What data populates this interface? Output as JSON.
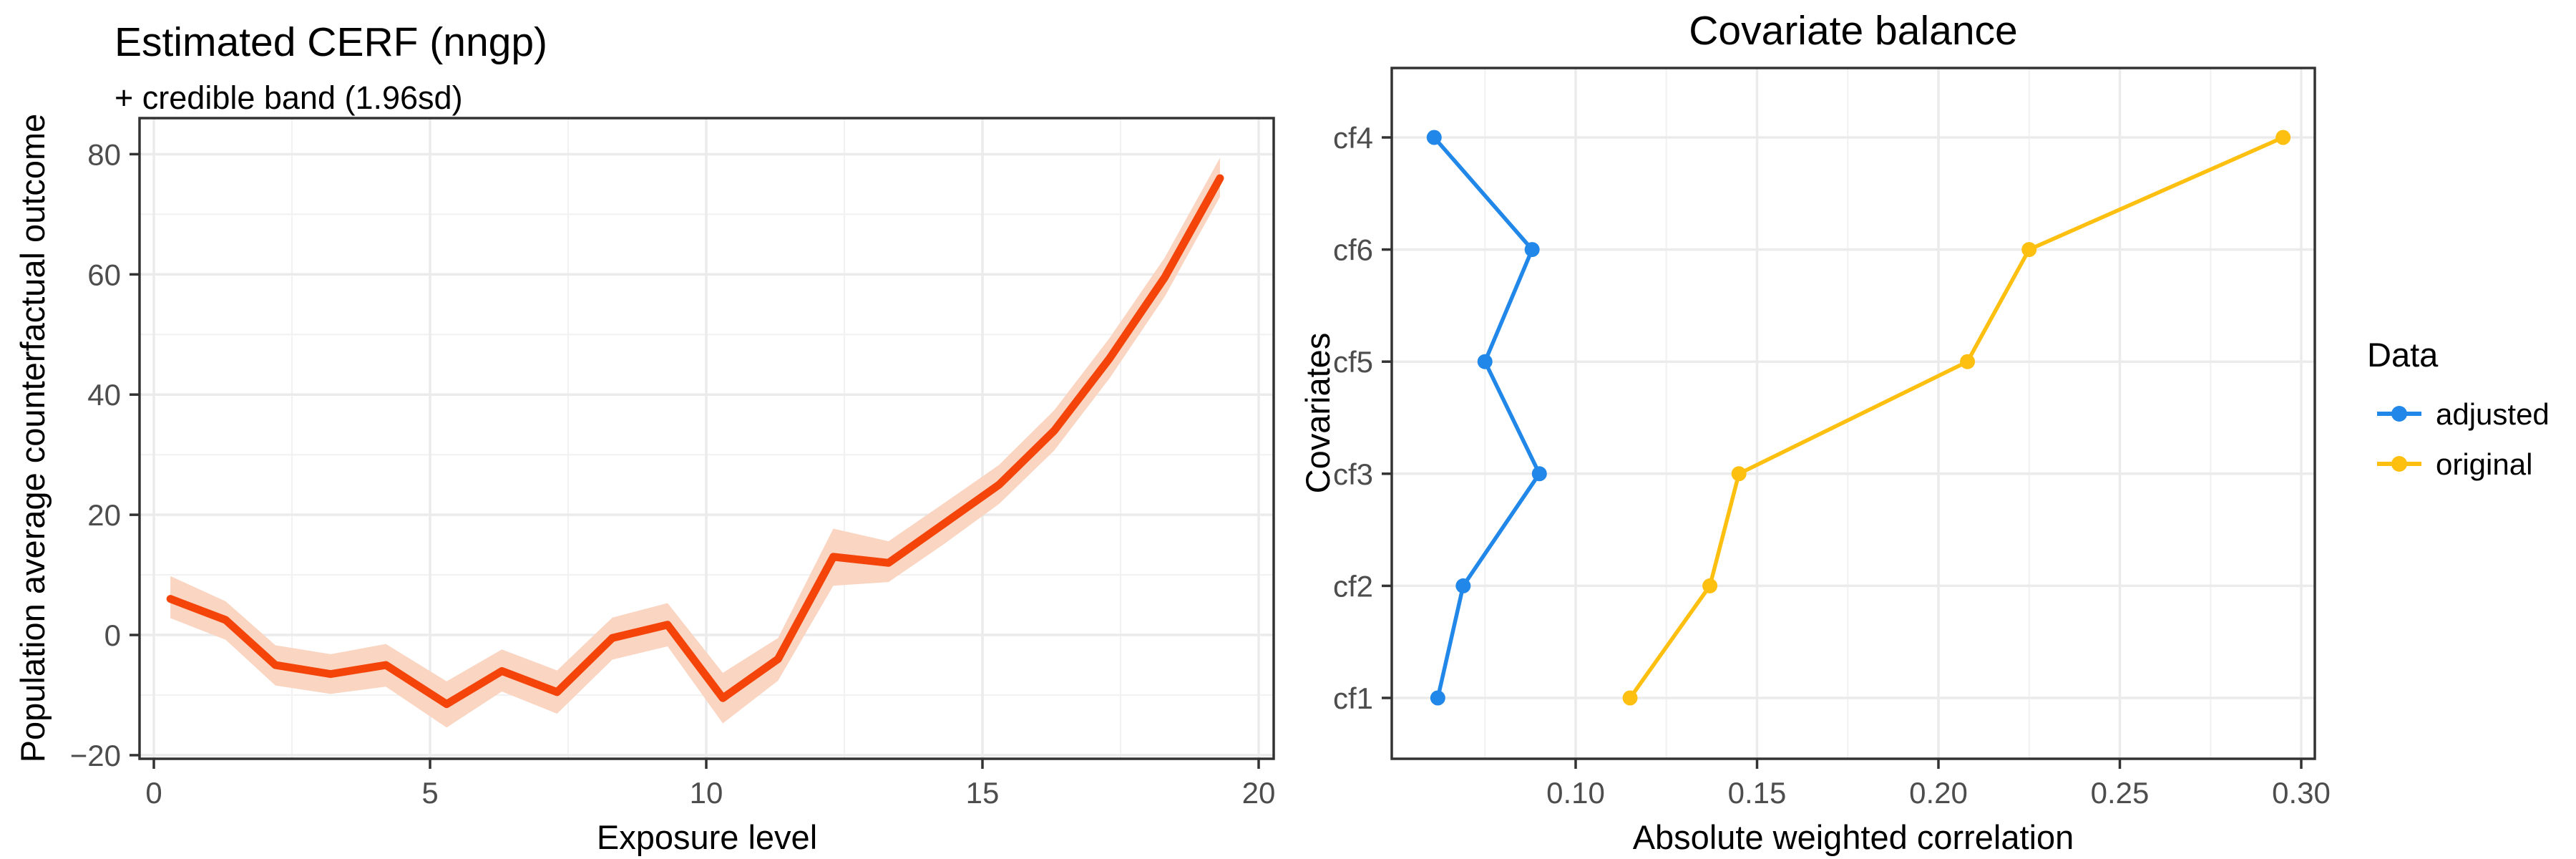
{
  "chart_data": [
    {
      "type": "line",
      "title": "Estimated CERF (nngp)",
      "subtitle": "+ credible band (1.96sd)",
      "xlabel": "Exposure level",
      "ylabel": "Population average counterfactual outcome",
      "xlim": [
        -0.26,
        20.3
      ],
      "ylim": [
        -20.6,
        86
      ],
      "x_ticks": [
        0,
        5,
        10,
        15,
        20
      ],
      "x_tick_labels": [
        "0",
        "5",
        "10",
        "15",
        "20"
      ],
      "y_ticks": [
        -20,
        0,
        20,
        40,
        60,
        80
      ],
      "y_tick_labels": [
        "−20",
        "0",
        "20",
        "40",
        "60",
        "80"
      ],
      "x_minor": [
        2.5,
        7.5,
        12.5,
        17.5
      ],
      "y_minor": [
        -10,
        10,
        30,
        50,
        70
      ],
      "grid": "on",
      "line_color": "#F44409",
      "band_color": "#FAD5C2",
      "x": [
        0.3,
        1.3,
        2.2,
        3.2,
        4.2,
        5.3,
        6.3,
        7.3,
        8.3,
        9.3,
        10.3,
        11.3,
        12.3,
        13.3,
        14.3,
        15.3,
        16.3,
        17.3,
        18.3,
        19.3
      ],
      "y": [
        6.0,
        2.5,
        -5.0,
        -6.5,
        -5.0,
        -11.5,
        -6.0,
        -9.5,
        -0.5,
        1.7,
        -10.5,
        -4.0,
        13.0,
        12.0,
        18.5,
        25.0,
        34.0,
        46.0,
        59.5,
        76.0
      ],
      "band_lower": [
        2.8,
        -0.8,
        -8.4,
        -9.8,
        -8.6,
        -15.4,
        -9.4,
        -13.1,
        -4.1,
        -1.9,
        -14.7,
        -7.6,
        8.2,
        8.8,
        15.1,
        21.8,
        30.7,
        42.7,
        56.3,
        72.9
      ],
      "band_upper": [
        9.8,
        5.6,
        -1.7,
        -3.2,
        -1.5,
        -7.7,
        -2.4,
        -5.9,
        2.9,
        5.3,
        -6.3,
        -0.5,
        17.7,
        15.6,
        21.9,
        28.3,
        37.4,
        49.4,
        62.8,
        79.4
      ]
    },
    {
      "type": "scatter",
      "title": "Covariate balance",
      "xlabel": "Absolute weighted correlation",
      "ylabel": "Covariates",
      "xlim": [
        0.049,
        0.307
      ],
      "x_ticks": [
        0.1,
        0.15,
        0.2,
        0.25,
        0.3
      ],
      "x_tick_labels": [
        "0.10",
        "0.15",
        "0.20",
        "0.25",
        "0.30"
      ],
      "x_minor": [
        0.075,
        0.125,
        0.175,
        0.225,
        0.275
      ],
      "categories_bottom_to_top": [
        "cf1",
        "cf2",
        "cf3",
        "cf5",
        "cf6",
        "cf4"
      ],
      "grid": "on",
      "legend": {
        "title": "Data",
        "position": "right"
      },
      "series": [
        {
          "name": "adjusted",
          "color": "#2187E8",
          "values": [
            0.062,
            0.069,
            0.09,
            0.075,
            0.088,
            0.061
          ]
        },
        {
          "name": "original",
          "color": "#FDC010",
          "values": [
            0.115,
            0.137,
            0.145,
            0.208,
            0.225,
            0.295
          ]
        }
      ]
    }
  ],
  "style": {
    "grid_major_color": "#EBEBEB",
    "grid_minor_color": "#F2F2F2",
    "panel_border_color": "#333333",
    "tick_color": "#333333",
    "tick_label_color": "#4D4D4D"
  }
}
